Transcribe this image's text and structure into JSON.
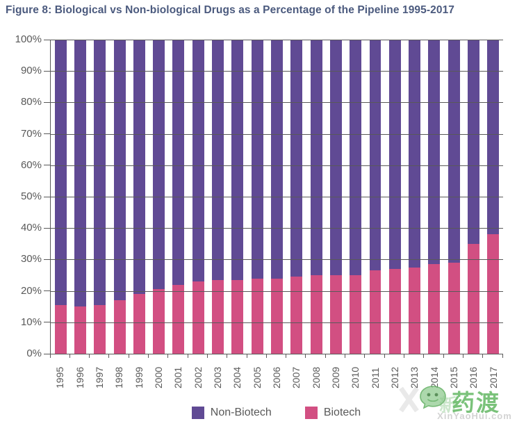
{
  "figure": {
    "title": "Figure 8: Biological vs Non-biological Drugs as a Percentage of the Pipeline 1995-2017"
  },
  "chart_data": {
    "type": "bar",
    "stacked": true,
    "title": "Figure 8: Biological vs Non-biological Drugs as a Percentage of the Pipeline 1995-2017",
    "xlabel": "",
    "ylabel": "",
    "ylim": [
      0,
      100
    ],
    "y_tick_labels": [
      "100%",
      "90%",
      "80%",
      "70%",
      "60%",
      "50%",
      "40%",
      "30%",
      "20%",
      "10%",
      "0%"
    ],
    "grid": true,
    "legend_position": "bottom",
    "x_label_rotation": -90,
    "categories": [
      "1995",
      "1996",
      "1997",
      "1998",
      "1999",
      "2000",
      "2001",
      "2002",
      "2003",
      "2004",
      "2005",
      "2006",
      "2007",
      "2008",
      "2009",
      "2010",
      "2011",
      "2012",
      "2013",
      "2014",
      "2015",
      "2016",
      "2017"
    ],
    "series": [
      {
        "name": "Non-Biotech",
        "color": "#604a94",
        "values": [
          84.5,
          85,
          84.5,
          83,
          81,
          79.5,
          78,
          77,
          76.5,
          76.5,
          76,
          76,
          75.5,
          75,
          75,
          75,
          73.5,
          73,
          72.5,
          71.5,
          71,
          65,
          62
        ]
      },
      {
        "name": "Biotech",
        "color": "#d24f82",
        "values": [
          15.5,
          15,
          15.5,
          17,
          19,
          20.5,
          22,
          23,
          23.5,
          23.5,
          24,
          24,
          24.5,
          25,
          25,
          25,
          26.5,
          27,
          27.5,
          28.5,
          29,
          35,
          38
        ]
      }
    ]
  },
  "legend": {
    "items": [
      {
        "label": "Non-Biotech",
        "color": "#604a94"
      },
      {
        "label": "Biotech",
        "color": "#d24f82"
      }
    ]
  },
  "colors": {
    "title_text": "#4b5a7e",
    "axis_text": "#595959",
    "gridline": "#595959",
    "watermark_green": "#68ba68"
  },
  "watermark": {
    "brand_cn": "药渡",
    "brand_cn_faint": "新",
    "site": "XinYaoHui.com"
  }
}
